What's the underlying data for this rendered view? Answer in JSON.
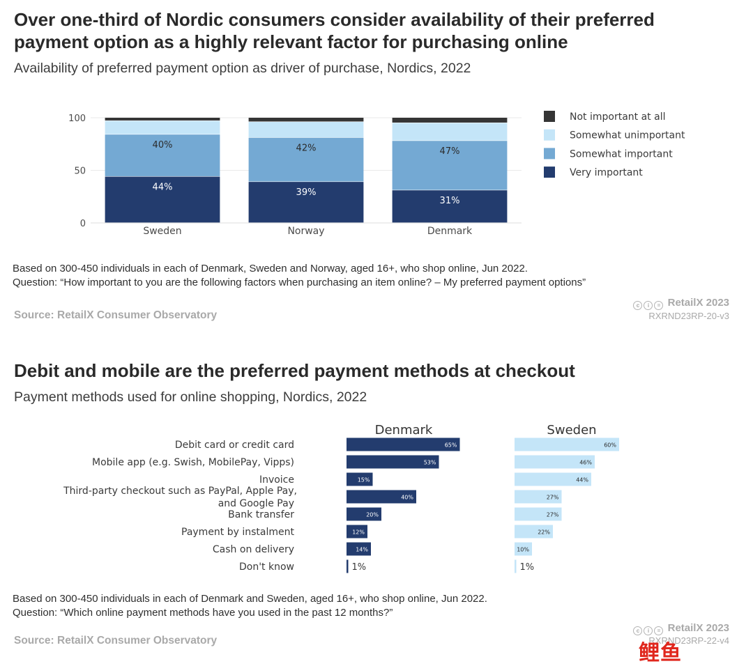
{
  "chart1": {
    "title_line1": "Over one-third of Nordic consumers consider availability of their preferred",
    "title_line2": "payment option as a highly relevant factor for purchasing online",
    "subtitle": "Availability of preferred payment option as driver of purchase, Nordics, 2022",
    "note_line1": "Based on 300-450 individuals in each of Denmark, Sweden and Norway, aged 16+, who shop online, Jun 2022.",
    "note_line2": "Question: “How important to you are the following factors when purchasing an item online? – My preferred payment options”",
    "source": "Source: RetailX Consumer Observatory",
    "brand": "RetailX 2023",
    "code": "RXRND23RP-20-v3"
  },
  "chart2": {
    "title": "Debit and mobile are the preferred payment methods at checkout",
    "subtitle": "Payment methods used for online shopping, Nordics, 2022",
    "note_line1": "Based on 300-450 individuals in each of Denmark and Sweden, aged 16+, who shop online, Jun 2022.",
    "note_line2": "Question: “Which online payment methods have you used in the past 12 months?”",
    "source": "Source: RetailX Consumer Observatory",
    "brand": "RetailX 2023",
    "code": "RXRND23RP-22-v4"
  },
  "watermark": "鲤鱼",
  "chart_data": [
    {
      "type": "bar",
      "stacked": true,
      "categories": [
        "Sweden",
        "Norway",
        "Denmark"
      ],
      "ylim": [
        0,
        100
      ],
      "yticks": [
        0,
        50,
        100
      ],
      "legend_position": "right",
      "series": [
        {
          "name": "Very important",
          "color": "#233c6e",
          "values": [
            44,
            39,
            31
          ],
          "labels": [
            "44%",
            "39%",
            "31%"
          ]
        },
        {
          "name": "Somewhat important",
          "color": "#74a9d3",
          "values": [
            40,
            42,
            47
          ],
          "labels": [
            "40%",
            "42%",
            "47%"
          ]
        },
        {
          "name": "Somewhat unimportant",
          "color": "#c4e5f8",
          "values": [
            13,
            15,
            17
          ],
          "labels": [
            "",
            "",
            ""
          ]
        },
        {
          "name": "Not important at all",
          "color": "#353535",
          "values": [
            3,
            4,
            5
          ],
          "labels": [
            "",
            "",
            ""
          ]
        }
      ],
      "legend_order": [
        3,
        2,
        1,
        0
      ]
    },
    {
      "type": "bar",
      "orientation": "horizontal",
      "categories": [
        [
          "Debit card or credit card"
        ],
        [
          "Mobile app (e.g. Swish, MobilePay, Vipps)"
        ],
        [
          "Invoice"
        ],
        [
          "Third-party checkout such as PayPal, Apple Pay,",
          "and Google Pay"
        ],
        [
          "Bank transfer"
        ],
        [
          "Payment by instalment"
        ],
        [
          "Cash on delivery"
        ],
        [
          "Don't know"
        ]
      ],
      "xlim": [
        0,
        100
      ],
      "panels": [
        {
          "name": "Denmark",
          "color": "#233c6e",
          "label_color": "#ffffff",
          "values": [
            65,
            53,
            15,
            40,
            20,
            12,
            14,
            1
          ],
          "labels": [
            "65%",
            "53%",
            "15%",
            "40%",
            "20%",
            "12%",
            "14%",
            "1%"
          ]
        },
        {
          "name": "Sweden",
          "color": "#c4e5f8",
          "label_color": "#2b2b2b",
          "values": [
            60,
            46,
            44,
            27,
            27,
            22,
            10,
            1
          ],
          "labels": [
            "60%",
            "46%",
            "44%",
            "27%",
            "27%",
            "22%",
            "10%",
            "1%"
          ]
        }
      ]
    }
  ]
}
